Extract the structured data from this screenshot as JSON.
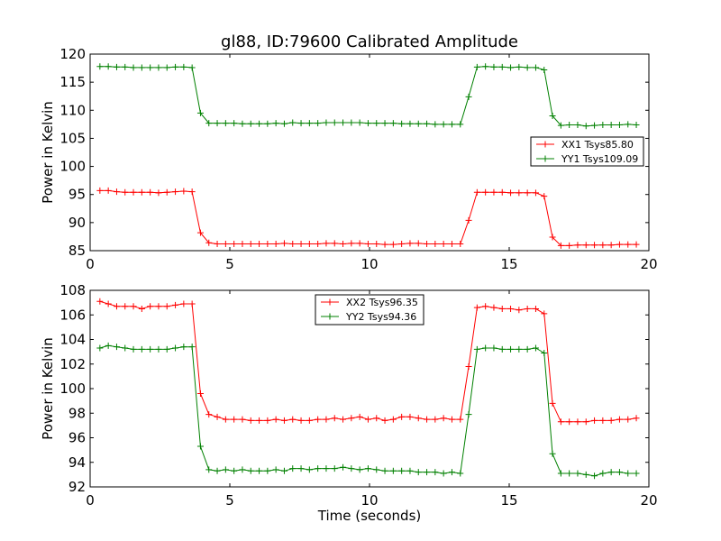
{
  "title": "gl88, ID:79600 Calibrated Amplitude",
  "chart_data": [
    {
      "type": "line",
      "xlabel": "",
      "ylabel": "Power in Kelvin",
      "xlim": [
        0,
        20
      ],
      "ylim": [
        85,
        120
      ],
      "xticks": [
        0,
        5,
        10,
        15,
        20
      ],
      "yticks": [
        85,
        90,
        95,
        100,
        105,
        110,
        115,
        120
      ],
      "grid": false,
      "legend_position": "center-right",
      "x": [
        0.35,
        0.65,
        0.95,
        1.25,
        1.55,
        1.85,
        2.15,
        2.45,
        2.75,
        3.05,
        3.35,
        3.65,
        3.95,
        4.25,
        4.55,
        4.85,
        5.15,
        5.45,
        5.75,
        6.05,
        6.35,
        6.65,
        6.95,
        7.25,
        7.55,
        7.85,
        8.15,
        8.45,
        8.75,
        9.05,
        9.35,
        9.65,
        9.95,
        10.25,
        10.55,
        10.85,
        11.15,
        11.45,
        11.75,
        12.05,
        12.35,
        12.65,
        12.95,
        13.25,
        13.55,
        13.85,
        14.15,
        14.45,
        14.75,
        15.05,
        15.35,
        15.65,
        15.95,
        16.25,
        16.55,
        16.85,
        17.15,
        17.45,
        17.75,
        18.05,
        18.35,
        18.65,
        18.95,
        19.25,
        19.55
      ],
      "series": [
        {
          "name": "XX1 Tsys85.80",
          "color": "#ff0000",
          "values": [
            95.7,
            95.7,
            95.5,
            95.4,
            95.4,
            95.4,
            95.4,
            95.3,
            95.4,
            95.5,
            95.6,
            95.5,
            88.2,
            86.4,
            86.2,
            86.2,
            86.2,
            86.2,
            86.2,
            86.2,
            86.2,
            86.2,
            86.3,
            86.2,
            86.2,
            86.2,
            86.2,
            86.3,
            86.3,
            86.2,
            86.3,
            86.3,
            86.2,
            86.2,
            86.1,
            86.1,
            86.2,
            86.3,
            86.3,
            86.2,
            86.2,
            86.2,
            86.2,
            86.2,
            90.4,
            95.4,
            95.4,
            95.4,
            95.4,
            95.3,
            95.3,
            95.3,
            95.3,
            94.7,
            87.4,
            85.9,
            85.9,
            86.0,
            86.0,
            86.0,
            86.0,
            86.0,
            86.1,
            86.1,
            86.1
          ]
        },
        {
          "name": "YY1 Tsys109.09",
          "color": "#008000",
          "values": [
            117.8,
            117.8,
            117.7,
            117.7,
            117.6,
            117.6,
            117.6,
            117.6,
            117.6,
            117.7,
            117.7,
            117.6,
            109.5,
            107.7,
            107.7,
            107.7,
            107.7,
            107.6,
            107.6,
            107.6,
            107.6,
            107.7,
            107.6,
            107.8,
            107.7,
            107.7,
            107.7,
            107.8,
            107.8,
            107.8,
            107.8,
            107.8,
            107.7,
            107.7,
            107.7,
            107.7,
            107.6,
            107.6,
            107.6,
            107.6,
            107.5,
            107.5,
            107.5,
            107.5,
            112.4,
            117.7,
            117.8,
            117.7,
            117.7,
            117.6,
            117.7,
            117.6,
            117.6,
            117.2,
            109.0,
            107.3,
            107.4,
            107.4,
            107.2,
            107.3,
            107.4,
            107.4,
            107.4,
            107.5,
            107.4
          ]
        }
      ]
    },
    {
      "type": "line",
      "xlabel": "Time (seconds)",
      "ylabel": "Power in Kelvin",
      "xlim": [
        0,
        20
      ],
      "ylim": [
        92,
        108
      ],
      "xticks": [
        0,
        5,
        10,
        15,
        20
      ],
      "yticks": [
        92,
        94,
        96,
        98,
        100,
        102,
        104,
        106,
        108
      ],
      "grid": false,
      "legend_position": "upper-center",
      "x": [
        0.35,
        0.65,
        0.95,
        1.25,
        1.55,
        1.85,
        2.15,
        2.45,
        2.75,
        3.05,
        3.35,
        3.65,
        3.95,
        4.25,
        4.55,
        4.85,
        5.15,
        5.45,
        5.75,
        6.05,
        6.35,
        6.65,
        6.95,
        7.25,
        7.55,
        7.85,
        8.15,
        8.45,
        8.75,
        9.05,
        9.35,
        9.65,
        9.95,
        10.25,
        10.55,
        10.85,
        11.15,
        11.45,
        11.75,
        12.05,
        12.35,
        12.65,
        12.95,
        13.25,
        13.55,
        13.85,
        14.15,
        14.45,
        14.75,
        15.05,
        15.35,
        15.65,
        15.95,
        16.25,
        16.55,
        16.85,
        17.15,
        17.45,
        17.75,
        18.05,
        18.35,
        18.65,
        18.95,
        19.25,
        19.55
      ],
      "series": [
        {
          "name": "XX2 Tsys96.35",
          "color": "#ff0000",
          "values": [
            107.1,
            106.9,
            106.7,
            106.7,
            106.7,
            106.5,
            106.7,
            106.7,
            106.7,
            106.8,
            106.9,
            106.9,
            99.6,
            97.9,
            97.7,
            97.5,
            97.5,
            97.5,
            97.4,
            97.4,
            97.4,
            97.5,
            97.4,
            97.5,
            97.4,
            97.4,
            97.5,
            97.5,
            97.6,
            97.5,
            97.6,
            97.7,
            97.5,
            97.6,
            97.4,
            97.5,
            97.7,
            97.7,
            97.6,
            97.5,
            97.5,
            97.6,
            97.5,
            97.5,
            101.8,
            106.6,
            106.7,
            106.6,
            106.5,
            106.5,
            106.4,
            106.5,
            106.5,
            106.1,
            98.8,
            97.3,
            97.3,
            97.3,
            97.3,
            97.4,
            97.4,
            97.4,
            97.5,
            97.5,
            97.6
          ]
        },
        {
          "name": "YY2 Tsys94.36",
          "color": "#008000",
          "values": [
            103.3,
            103.5,
            103.4,
            103.3,
            103.2,
            103.2,
            103.2,
            103.2,
            103.2,
            103.3,
            103.4,
            103.4,
            95.3,
            93.4,
            93.3,
            93.4,
            93.3,
            93.4,
            93.3,
            93.3,
            93.3,
            93.4,
            93.3,
            93.5,
            93.5,
            93.4,
            93.5,
            93.5,
            93.5,
            93.6,
            93.5,
            93.4,
            93.5,
            93.4,
            93.3,
            93.3,
            93.3,
            93.3,
            93.2,
            93.2,
            93.2,
            93.1,
            93.2,
            93.1,
            97.9,
            103.2,
            103.3,
            103.3,
            103.2,
            103.2,
            103.2,
            103.2,
            103.3,
            102.9,
            94.7,
            93.1,
            93.1,
            93.1,
            93.0,
            92.9,
            93.1,
            93.2,
            93.2,
            93.1,
            93.1
          ]
        }
      ]
    }
  ]
}
